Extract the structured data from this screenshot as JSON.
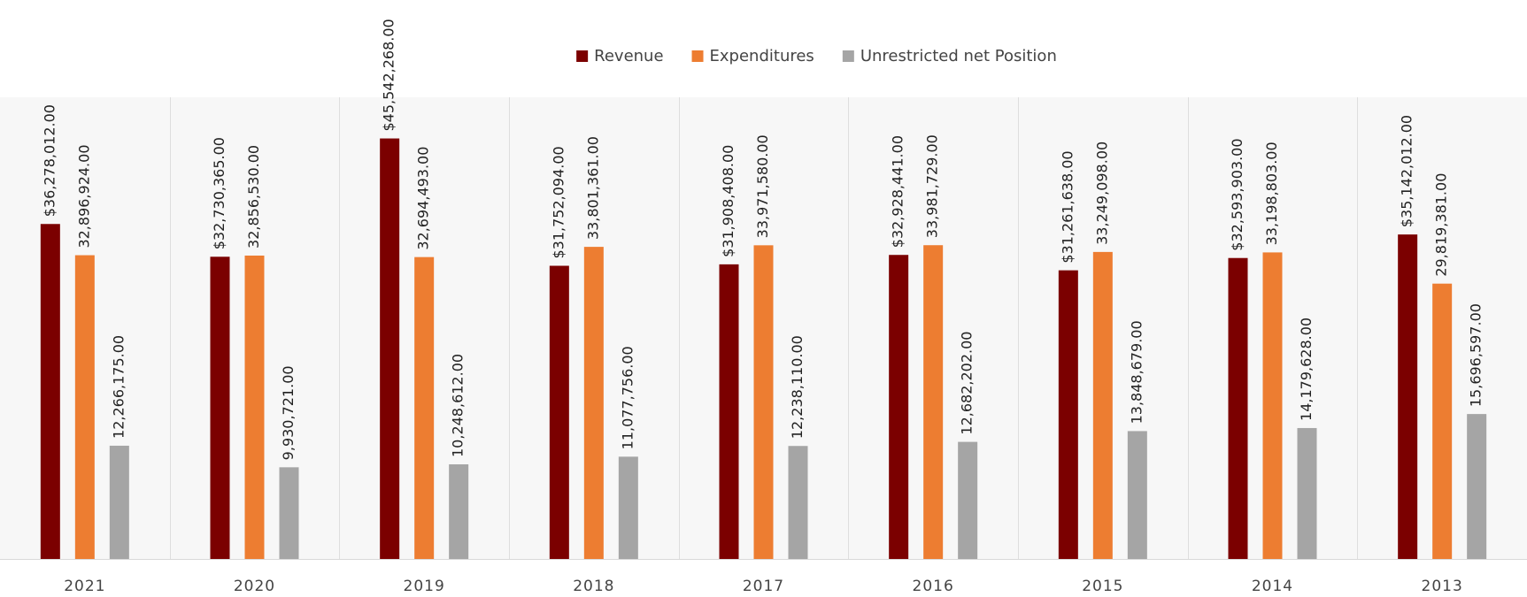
{
  "chart_data": {
    "type": "bar",
    "categories": [
      "2021",
      "2020",
      "2019",
      "2018",
      "2017",
      "2016",
      "2015",
      "2014",
      "2013"
    ],
    "series": [
      {
        "name": "Revenue",
        "color": "#7b0000",
        "values": [
          36278012,
          32730365,
          45542268,
          31752094,
          31908408,
          32928441,
          31261638,
          32593903,
          35142012
        ],
        "value_labels": [
          "$36,278,012.00",
          "$32,730,365.00",
          "$45,542,268.00",
          "$31,752,094.00",
          "$31,908,408.00",
          "$32,928,441.00",
          "$31,261,638.00",
          "$32,593,903.00",
          "$35,142,012.00"
        ]
      },
      {
        "name": "Expenditures",
        "color": "#ed7d31",
        "values": [
          32896924,
          32856530,
          32694493,
          33801361,
          33971580,
          33981729,
          33249098,
          33198803,
          29819381
        ],
        "value_labels": [
          "32,896,924.00",
          "32,856,530.00",
          "32,694,493.00",
          "33,801,361.00",
          "33,971,580.00",
          "33,981,729.00",
          "33,249,098.00",
          "33,198,803.00",
          "29,819,381.00"
        ]
      },
      {
        "name": "Unrestricted net Position",
        "color": "#a5a5a5",
        "values": [
          12266175,
          9930721,
          10248612,
          11077756,
          12238110,
          12682202,
          13848679,
          14179628,
          15696597
        ],
        "value_labels": [
          "12,266,175.00",
          "9,930,721.00",
          "10,248,612.00",
          "11,077,756.00",
          "12,238,110.00",
          "12,682,202.00",
          "13,848,679.00",
          "14,179,628.00",
          "15,696,597.00"
        ]
      }
    ],
    "ylim": [
      0,
      50000000
    ],
    "legend": "top"
  }
}
